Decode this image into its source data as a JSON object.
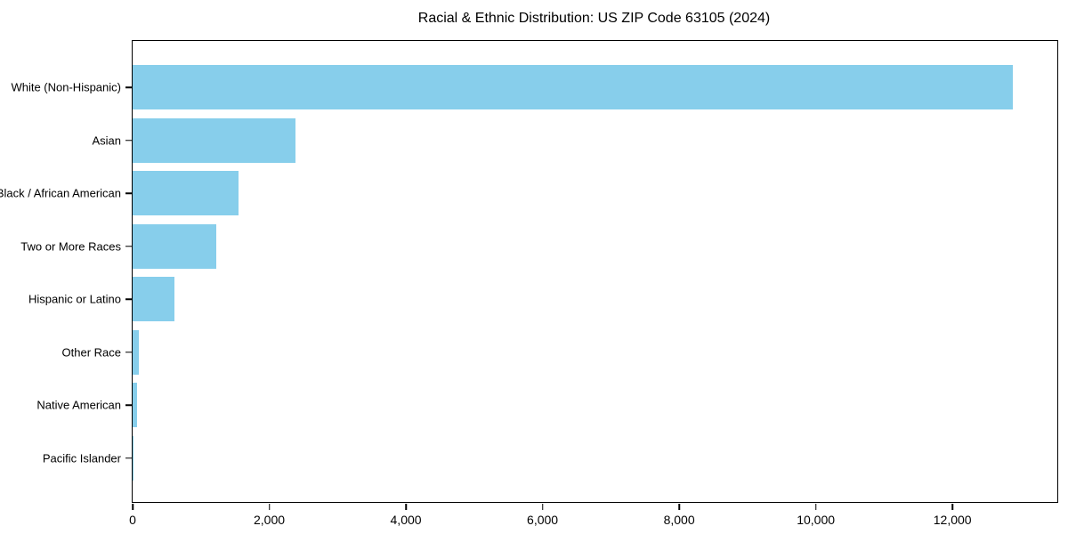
{
  "chart_data": {
    "type": "bar",
    "orientation": "horizontal",
    "title": "Racial & Ethnic Distribution: US ZIP Code 63105 (2024)",
    "categories": [
      "White (Non-Hispanic)",
      "Asian",
      "Black / African American",
      "Two or More Races",
      "Hispanic or Latino",
      "Other Race",
      "Native American",
      "Pacific Islander"
    ],
    "values": [
      12890,
      2390,
      1550,
      1225,
      615,
      95,
      65,
      10
    ],
    "xlabel": "",
    "ylabel": "",
    "xlim": [
      0,
      13535
    ],
    "xticks": [
      0,
      2000,
      4000,
      6000,
      8000,
      10000,
      12000
    ],
    "xtick_labels": [
      "0",
      "2,000",
      "4,000",
      "6,000",
      "8,000",
      "10,000",
      "12,000"
    ],
    "bar_color": "#87CEEB",
    "axis_color": "#000000",
    "background_color": "#ffffff",
    "grid": false,
    "legend": null
  }
}
